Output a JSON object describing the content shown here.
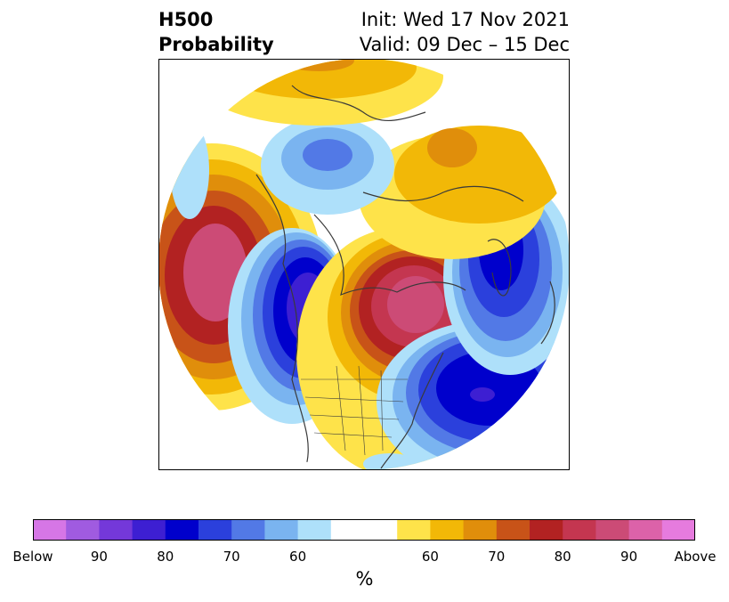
{
  "header": {
    "title_line1": "H500",
    "title_line2": "Probability",
    "init_text": "Init: Wed 17 Nov 2021",
    "valid_text": "Valid: 09 Dec – 15 Dec"
  },
  "colorbar": {
    "unit": "%",
    "below_colors": [
      "#d676e6",
      "#a05be0",
      "#7438d9",
      "#3d1fd2",
      "#0000cc",
      "#2b40dc",
      "#5279e6",
      "#7ab4f0",
      "#aee0fa"
    ],
    "above_colors": [
      "#fee34a",
      "#f2b807",
      "#e08e0b",
      "#c85318",
      "#b22222",
      "#c43650",
      "#cc4b76",
      "#dc62a9",
      "#e67bde"
    ],
    "neutral_color": "#ffffff",
    "tick_labels": [
      "Below",
      "90",
      "80",
      "70",
      "60",
      "60",
      "70",
      "80",
      "90",
      "Above"
    ]
  },
  "map": {
    "projection": "north-polar-stereographic",
    "features": [
      "coastlines",
      "country-borders",
      "us-state-borders"
    ],
    "anomaly_centers": [
      {
        "type": "above",
        "region": "North Pacific",
        "peak_category": "Above 90"
      },
      {
        "type": "below",
        "region": "Western North America",
        "peak_category": "Below 90"
      },
      {
        "type": "above",
        "region": "Hudson Bay / Eastern Canada",
        "peak_category": "Above 90"
      },
      {
        "type": "below",
        "region": "North Atlantic",
        "peak_category": "Below 90"
      },
      {
        "type": "below",
        "region": "Scandinavia / Northern Europe",
        "peak_category": "Below 90"
      },
      {
        "type": "above",
        "region": "Siberia / Arctic Russia",
        "peak_category": "60-70"
      },
      {
        "type": "below",
        "region": "Arctic Ocean",
        "peak_category": "70-80"
      }
    ]
  }
}
